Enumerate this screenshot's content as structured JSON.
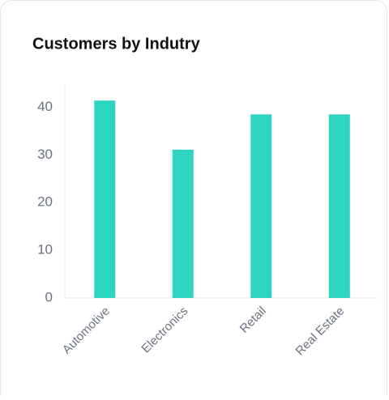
{
  "chart_data": {
    "type": "bar",
    "title": "Customers by Indutry",
    "categories": [
      "Automotive",
      "Electronics",
      "Retail",
      "Real Estate"
    ],
    "values": [
      41.4,
      31.1,
      38.5,
      38.5
    ],
    "color": "#2dd4bf",
    "ylim": [
      0,
      45
    ],
    "yticks": [
      0,
      10,
      20,
      30,
      40
    ],
    "grid": false
  }
}
